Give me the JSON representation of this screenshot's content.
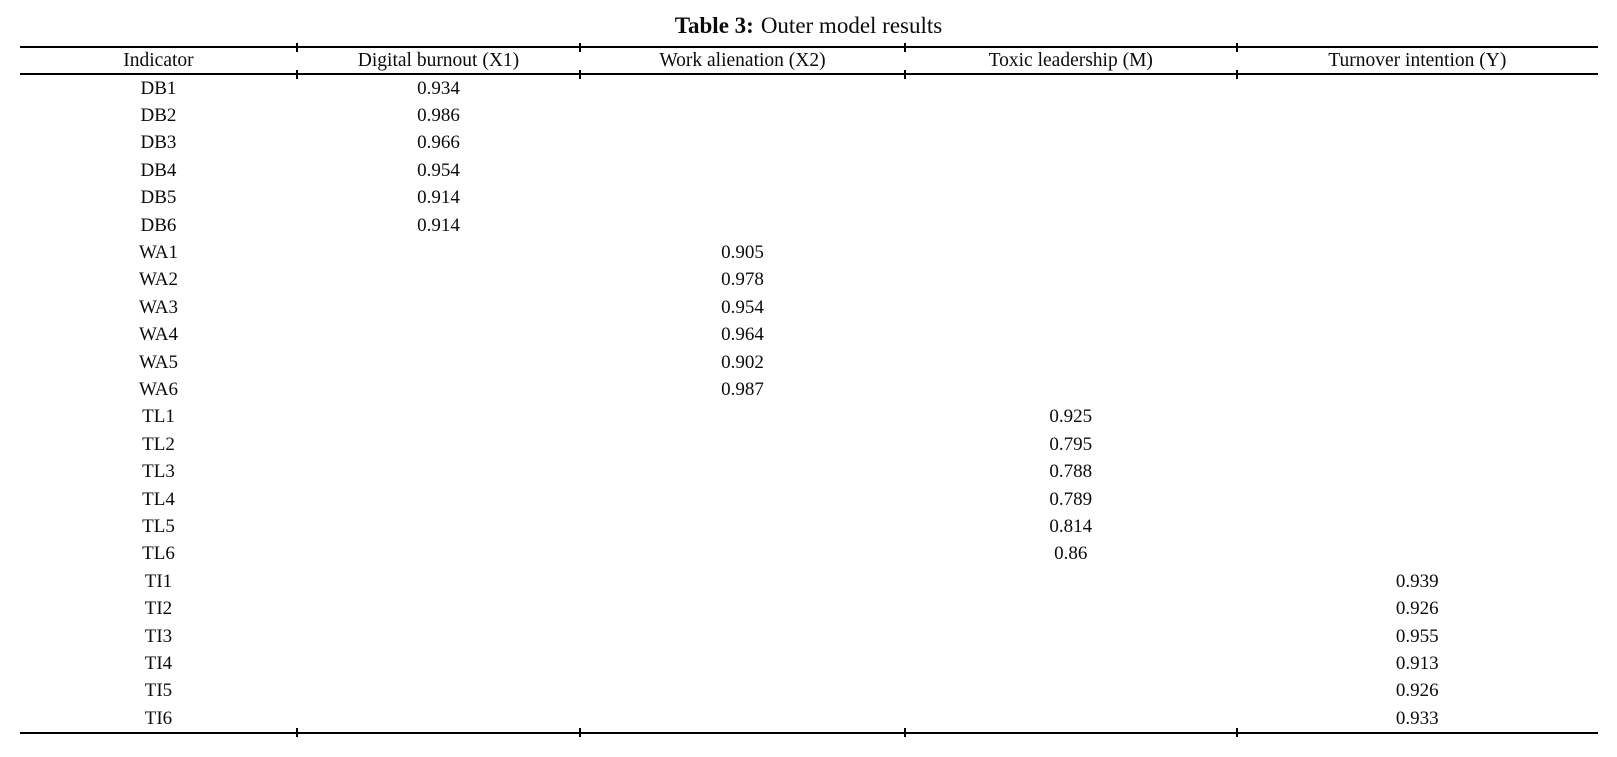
{
  "caption": {
    "prefix": "Table 3:",
    "text": "Outer model results"
  },
  "table": {
    "columns": [
      "Indicator",
      "Digital burnout (X1)",
      "Work alienation (X2)",
      "Toxic leadership (M)",
      "Turnover intention (Y)"
    ],
    "rows": [
      [
        "DB1",
        "0.934",
        "",
        "",
        ""
      ],
      [
        "DB2",
        "0.986",
        "",
        "",
        ""
      ],
      [
        "DB3",
        "0.966",
        "",
        "",
        ""
      ],
      [
        "DB4",
        "0.954",
        "",
        "",
        ""
      ],
      [
        "DB5",
        "0.914",
        "",
        "",
        ""
      ],
      [
        "DB6",
        "0.914",
        "",
        "",
        ""
      ],
      [
        "WA1",
        "",
        "0.905",
        "",
        ""
      ],
      [
        "WA2",
        "",
        "0.978",
        "",
        ""
      ],
      [
        "WA3",
        "",
        "0.954",
        "",
        ""
      ],
      [
        "WA4",
        "",
        "0.964",
        "",
        ""
      ],
      [
        "WA5",
        "",
        "0.902",
        "",
        ""
      ],
      [
        "WA6",
        "",
        "0.987",
        "",
        ""
      ],
      [
        "TL1",
        "",
        "",
        "0.925",
        ""
      ],
      [
        "TL2",
        "",
        "",
        "0.795",
        ""
      ],
      [
        "TL3",
        "",
        "",
        "0.788",
        ""
      ],
      [
        "TL4",
        "",
        "",
        "0.789",
        ""
      ],
      [
        "TL5",
        "",
        "",
        "0.814",
        ""
      ],
      [
        "TL6",
        "",
        "",
        "0.86",
        ""
      ],
      [
        "TI1",
        "",
        "",
        "",
        "0.939"
      ],
      [
        "TI2",
        "",
        "",
        "",
        "0.926"
      ],
      [
        "TI3",
        "",
        "",
        "",
        "0.955"
      ],
      [
        "TI4",
        "",
        "",
        "",
        "0.913"
      ],
      [
        "TI5",
        "",
        "",
        "",
        "0.926"
      ],
      [
        "TI6",
        "",
        "",
        "",
        "0.933"
      ]
    ]
  },
  "colors": {
    "text": "#0b0b0b",
    "rule": "#000000",
    "background": "#ffffff"
  }
}
